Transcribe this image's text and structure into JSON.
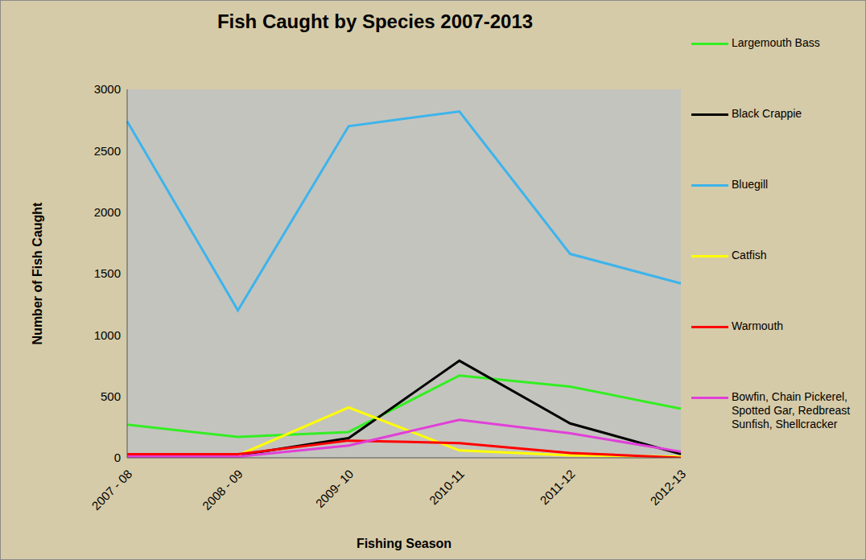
{
  "chart_data": {
    "type": "line",
    "title": "Fish Caught by Species 2007-2013",
    "x_label": "Fishing Season",
    "y_label": "Number of Fish Caught",
    "categories": [
      "2007 - 08",
      "2008 - 09",
      "2009- 10",
      "2010-11",
      "2011-12",
      "2012-13"
    ],
    "series": [
      {
        "name": "Largemouth Bass",
        "color": "#33ee22",
        "values": [
          270,
          170,
          210,
          670,
          580,
          400
        ]
      },
      {
        "name": "Black Crappie",
        "color": "#000000",
        "values": [
          20,
          20,
          160,
          790,
          280,
          30
        ]
      },
      {
        "name": "Bluegill",
        "color": "#3cb4ec",
        "values": [
          2740,
          1200,
          2700,
          2820,
          1660,
          1420
        ]
      },
      {
        "name": "Catfish",
        "color": "#ffff00",
        "values": [
          10,
          20,
          410,
          60,
          20,
          10
        ]
      },
      {
        "name": "Warmouth",
        "color": "#ff0000",
        "values": [
          30,
          30,
          140,
          120,
          40,
          0
        ]
      },
      {
        "name": "Bowfin, Chain Pickerel, Spotted Gar, Redbreast Sunfish, Shellcracker",
        "color": "#e040d8",
        "values": [
          10,
          10,
          100,
          310,
          200,
          50
        ]
      }
    ],
    "ylim": [
      0,
      3000
    ],
    "yticks": [
      0,
      500,
      1000,
      1500,
      2000,
      2500,
      3000
    ],
    "grid": false,
    "legend": "right",
    "marker": "none",
    "line_style": "solid"
  }
}
